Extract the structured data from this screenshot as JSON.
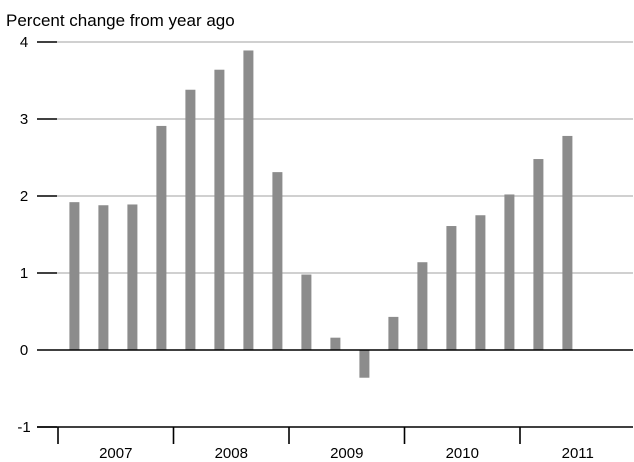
{
  "chart_data": {
    "type": "bar",
    "ylabel": "Percent change from year ago",
    "ylim": [
      -1,
      4
    ],
    "yticks": [
      {
        "value": 4,
        "label": "4"
      },
      {
        "value": 3,
        "label": "3"
      },
      {
        "value": 2,
        "label": "2"
      },
      {
        "value": 1,
        "label": "1"
      },
      {
        "value": 0,
        "label": "0"
      },
      {
        "value": -1,
        "label": "-1"
      }
    ],
    "year_labels": [
      "2007",
      "2008",
      "2009",
      "2010",
      "2011"
    ],
    "categories": [
      "2007 Q1",
      "2007 Q2",
      "2007 Q3",
      "2007 Q4",
      "2008 Q1",
      "2008 Q2",
      "2008 Q3",
      "2008 Q4",
      "2009 Q1",
      "2009 Q2",
      "2009 Q3",
      "2009 Q4",
      "2010 Q1",
      "2010 Q2",
      "2010 Q3",
      "2010 Q4",
      "2011 Q1",
      "2011 Q2",
      "2011 Q3",
      "2011 Q4"
    ],
    "values": [
      1.92,
      1.88,
      1.89,
      2.91,
      3.38,
      3.64,
      3.89,
      2.31,
      0.98,
      0.16,
      -0.36,
      0.43,
      1.14,
      1.61,
      1.75,
      2.02,
      2.48,
      2.78,
      null,
      null
    ],
    "grid": true,
    "bar_color": "#8c8c8c"
  }
}
